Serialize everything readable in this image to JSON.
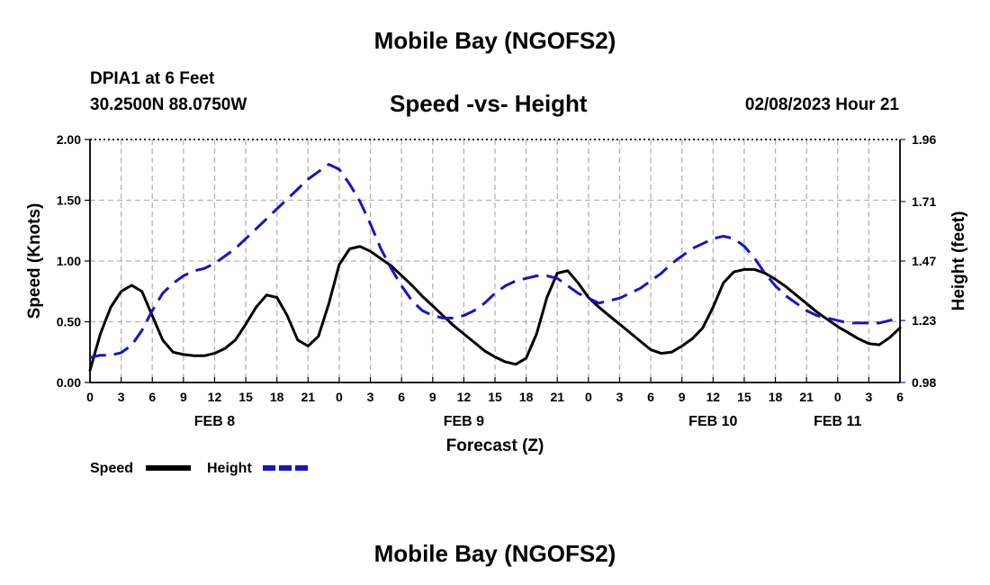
{
  "page": {
    "title": "Mobile Bay (NGOFS2)",
    "title_bottom": "Mobile Bay (NGOFS2)",
    "station": "DPIA1 at 6 Feet",
    "location": "30.2500N  88.0750W",
    "subtitle": "Speed -vs- Height",
    "datetime": "02/08/2023 Hour 21"
  },
  "chart_data": {
    "type": "line",
    "title": "Speed -vs- Height",
    "xlabel": "Forecast (Z)",
    "ylabel": "Speed (Knots)",
    "y2label": "Height (feet)",
    "xlim": [
      0,
      78
    ],
    "ylim": [
      0,
      2.0
    ],
    "y2lim": [
      0.98,
      1.96
    ],
    "grid": true,
    "x_tick_values": [
      0,
      3,
      6,
      9,
      12,
      15,
      18,
      21,
      24,
      27,
      30,
      33,
      36,
      39,
      42,
      45,
      48,
      51,
      54,
      57,
      60,
      63,
      66,
      69,
      72,
      75,
      78
    ],
    "x_tick_labels": [
      "0",
      "3",
      "6",
      "9",
      "12",
      "15",
      "18",
      "21",
      "0",
      "3",
      "6",
      "9",
      "12",
      "15",
      "18",
      "21",
      "0",
      "3",
      "6",
      "9",
      "12",
      "15",
      "18",
      "21",
      "0",
      "3",
      "6"
    ],
    "y_ticks": [
      "0.00",
      "0.50",
      "1.00",
      "1.50",
      "2.00"
    ],
    "y2_ticks": [
      "0.98",
      "1.23",
      "1.47",
      "1.71",
      "1.96"
    ],
    "date_labels": [
      {
        "label": "FEB 8",
        "x": 12
      },
      {
        "label": "FEB 9",
        "x": 36
      },
      {
        "label": "FEB 10",
        "x": 60
      },
      {
        "label": "FEB 11",
        "x": 72
      }
    ],
    "legend": [
      {
        "name": "Speed",
        "color": "#000000",
        "style": "solid"
      },
      {
        "name": "Height",
        "color": "#1414c8",
        "style": "dashed"
      }
    ],
    "series": [
      {
        "name": "Speed",
        "axis": "left",
        "color": "#000000",
        "x": [
          0,
          1,
          2,
          3,
          4,
          5,
          6,
          7,
          8,
          9,
          10,
          11,
          12,
          13,
          14,
          15,
          16,
          17,
          18,
          19,
          20,
          21,
          22,
          23,
          24,
          25,
          26,
          27,
          28,
          29,
          30,
          31,
          32,
          33,
          34,
          35,
          36,
          37,
          38,
          39,
          40,
          41,
          42,
          43,
          44,
          45,
          46,
          47,
          48,
          49,
          50,
          51,
          52,
          53,
          54,
          55,
          56,
          57,
          58,
          59,
          60,
          61,
          62,
          63,
          64,
          65,
          66,
          67,
          68,
          69,
          70,
          71,
          72,
          73,
          74,
          75,
          76,
          77,
          78
        ],
        "values": [
          0.1,
          0.4,
          0.62,
          0.75,
          0.8,
          0.75,
          0.55,
          0.35,
          0.25,
          0.23,
          0.22,
          0.22,
          0.24,
          0.28,
          0.35,
          0.48,
          0.62,
          0.72,
          0.7,
          0.55,
          0.35,
          0.3,
          0.38,
          0.65,
          0.97,
          1.1,
          1.12,
          1.08,
          1.02,
          0.96,
          0.88,
          0.8,
          0.71,
          0.63,
          0.55,
          0.47,
          0.4,
          0.33,
          0.26,
          0.21,
          0.17,
          0.15,
          0.2,
          0.4,
          0.7,
          0.9,
          0.92,
          0.82,
          0.7,
          0.62,
          0.55,
          0.48,
          0.41,
          0.34,
          0.27,
          0.24,
          0.25,
          0.3,
          0.36,
          0.45,
          0.62,
          0.82,
          0.91,
          0.93,
          0.93,
          0.9,
          0.85,
          0.79,
          0.72,
          0.65,
          0.58,
          0.52,
          0.46,
          0.41,
          0.36,
          0.32,
          0.31,
          0.37,
          0.45
        ]
      },
      {
        "name": "Height",
        "axis": "right",
        "color": "#1414c8",
        "x": [
          0,
          1,
          2,
          3,
          4,
          5,
          6,
          7,
          8,
          9,
          10,
          11,
          12,
          13,
          14,
          15,
          16,
          17,
          18,
          19,
          20,
          21,
          22,
          23,
          24,
          25,
          26,
          27,
          28,
          29,
          30,
          31,
          32,
          33,
          34,
          35,
          36,
          37,
          38,
          39,
          40,
          41,
          42,
          43,
          44,
          45,
          46,
          47,
          48,
          49,
          50,
          51,
          52,
          53,
          54,
          55,
          56,
          57,
          58,
          59,
          60,
          61,
          62,
          63,
          64,
          65,
          66,
          67,
          68,
          69,
          70,
          71,
          72,
          73,
          74,
          75,
          76,
          77,
          78
        ],
        "values": [
          1.08,
          1.09,
          1.09,
          1.1,
          1.13,
          1.19,
          1.27,
          1.34,
          1.38,
          1.41,
          1.43,
          1.44,
          1.46,
          1.49,
          1.52,
          1.56,
          1.6,
          1.64,
          1.68,
          1.72,
          1.76,
          1.8,
          1.83,
          1.86,
          1.84,
          1.78,
          1.71,
          1.62,
          1.52,
          1.44,
          1.37,
          1.31,
          1.27,
          1.25,
          1.24,
          1.24,
          1.25,
          1.27,
          1.3,
          1.34,
          1.37,
          1.39,
          1.4,
          1.41,
          1.41,
          1.4,
          1.37,
          1.34,
          1.32,
          1.3,
          1.31,
          1.32,
          1.34,
          1.36,
          1.39,
          1.42,
          1.46,
          1.49,
          1.52,
          1.54,
          1.56,
          1.57,
          1.56,
          1.53,
          1.48,
          1.42,
          1.37,
          1.33,
          1.3,
          1.27,
          1.25,
          1.24,
          1.23,
          1.22,
          1.22,
          1.22,
          1.22,
          1.23,
          1.24
        ]
      }
    ]
  }
}
